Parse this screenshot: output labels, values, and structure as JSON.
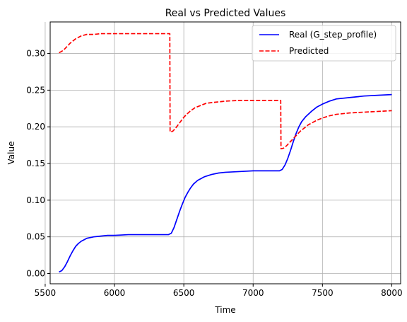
{
  "chart_data": {
    "type": "line",
    "title": "Real vs Predicted Values",
    "xlabel": "Time",
    "ylabel": "Value",
    "xlim": [
      5536,
      8064
    ],
    "ylim": [
      -0.014,
      0.343
    ],
    "xticks": [
      5500,
      6000,
      6500,
      7000,
      7500,
      8000
    ],
    "yticks": [
      0.0,
      0.05,
      0.1,
      0.15,
      0.2,
      0.25,
      0.3
    ],
    "ytick_labels": [
      "0.00",
      "0.05",
      "0.10",
      "0.15",
      "0.20",
      "0.25",
      "0.30"
    ],
    "grid": true,
    "legend_position": "upper right",
    "series": [
      {
        "name": "Real (G_step_profile)",
        "color": "#0000ff",
        "style": "solid",
        "x": [
          5600,
          5620,
          5640,
          5660,
          5680,
          5700,
          5720,
          5740,
          5760,
          5780,
          5800,
          5850,
          5900,
          5950,
          6000,
          6100,
          6200,
          6300,
          6390,
          6410,
          6430,
          6450,
          6470,
          6490,
          6510,
          6530,
          6550,
          6570,
          6600,
          6650,
          6700,
          6750,
          6800,
          6900,
          7000,
          7100,
          7190,
          7210,
          7230,
          7250,
          7270,
          7290,
          7310,
          7330,
          7350,
          7380,
          7420,
          7460,
          7500,
          7550,
          7600,
          7700,
          7800,
          7900,
          8000
        ],
        "y": [
          0.002,
          0.004,
          0.009,
          0.016,
          0.024,
          0.031,
          0.037,
          0.041,
          0.044,
          0.046,
          0.048,
          0.05,
          0.051,
          0.052,
          0.052,
          0.053,
          0.053,
          0.053,
          0.053,
          0.055,
          0.063,
          0.074,
          0.085,
          0.095,
          0.104,
          0.111,
          0.117,
          0.122,
          0.127,
          0.132,
          0.135,
          0.137,
          0.138,
          0.139,
          0.14,
          0.14,
          0.14,
          0.142,
          0.148,
          0.157,
          0.168,
          0.18,
          0.191,
          0.2,
          0.207,
          0.214,
          0.221,
          0.227,
          0.231,
          0.235,
          0.238,
          0.24,
          0.242,
          0.243,
          0.244
        ]
      },
      {
        "name": "Predicted",
        "color": "#ff0000",
        "style": "dashed",
        "x": [
          5600,
          5620,
          5640,
          5660,
          5680,
          5700,
          5720,
          5740,
          5760,
          5780,
          5800,
          5850,
          5900,
          5950,
          6000,
          6100,
          6200,
          6300,
          6399,
          6401,
          6420,
          6440,
          6460,
          6480,
          6500,
          6520,
          6550,
          6580,
          6620,
          6660,
          6700,
          6750,
          6800,
          6900,
          7000,
          7100,
          7199,
          7201,
          7220,
          7240,
          7260,
          7280,
          7300,
          7320,
          7340,
          7360,
          7380,
          7400,
          7430,
          7460,
          7500,
          7550,
          7600,
          7700,
          7800,
          7900,
          8000
        ],
        "y": [
          0.301,
          0.303,
          0.306,
          0.31,
          0.314,
          0.317,
          0.32,
          0.322,
          0.324,
          0.325,
          0.326,
          0.326,
          0.327,
          0.327,
          0.327,
          0.327,
          0.327,
          0.327,
          0.327,
          0.193,
          0.194,
          0.198,
          0.203,
          0.208,
          0.213,
          0.217,
          0.222,
          0.226,
          0.229,
          0.232,
          0.233,
          0.234,
          0.235,
          0.236,
          0.236,
          0.236,
          0.236,
          0.17,
          0.171,
          0.174,
          0.178,
          0.182,
          0.186,
          0.19,
          0.194,
          0.197,
          0.2,
          0.203,
          0.206,
          0.209,
          0.212,
          0.215,
          0.217,
          0.219,
          0.22,
          0.221,
          0.222
        ]
      }
    ]
  }
}
